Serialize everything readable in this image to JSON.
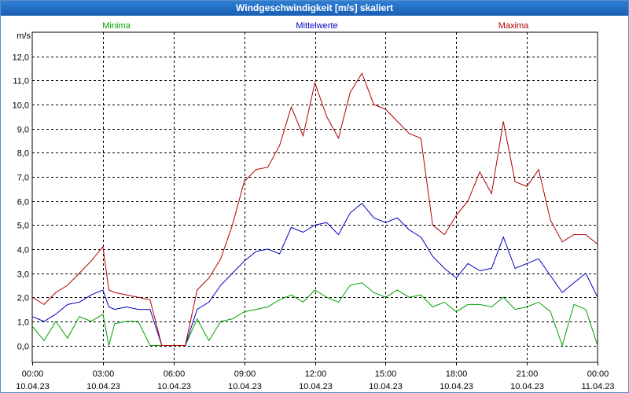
{
  "window": {
    "title": "Windgeschwindigkeit [m/s] skaliert"
  },
  "chart_data": {
    "type": "line",
    "title": "Windgeschwindigkeit [m/s] skaliert",
    "ylabel": "m/s",
    "xlabel": "",
    "ylim": [
      -0.7,
      13.0
    ],
    "xlim": [
      0,
      24
    ],
    "yticks": [
      "0,0",
      "1,0",
      "2,0",
      "3,0",
      "4,0",
      "5,0",
      "6,0",
      "7,0",
      "8,0",
      "9,0",
      "10,0",
      "11,0",
      "12,0"
    ],
    "ytick_values": [
      0,
      1,
      2,
      3,
      4,
      5,
      6,
      7,
      8,
      9,
      10,
      11,
      12
    ],
    "xticks": [
      {
        "time": "00:00",
        "date": "10.04.23",
        "hour": 0
      },
      {
        "time": "03:00",
        "date": "10.04.23",
        "hour": 3
      },
      {
        "time": "06:00",
        "date": "10.04.23",
        "hour": 6
      },
      {
        "time": "09:00",
        "date": "10.04.23",
        "hour": 9
      },
      {
        "time": "12:00",
        "date": "10.04.23",
        "hour": 12
      },
      {
        "time": "15:00",
        "date": "10.04.23",
        "hour": 15
      },
      {
        "time": "18:00",
        "date": "10.04.23",
        "hour": 18
      },
      {
        "time": "21:00",
        "date": "10.04.23",
        "hour": 21
      },
      {
        "time": "00:00",
        "date": "11.04.23",
        "hour": 24
      }
    ],
    "grid": true,
    "legend_position": "top",
    "series": [
      {
        "name": "Minima",
        "color": "#00a000",
        "x": [
          0,
          0.5,
          1,
          1.5,
          2,
          2.5,
          3,
          3.25,
          3.5,
          4,
          4.5,
          5,
          5.5,
          6,
          6.5,
          7,
          7.5,
          8,
          8.5,
          9,
          9.5,
          10,
          10.5,
          11,
          11.5,
          12,
          12.5,
          13,
          13.5,
          14,
          14.5,
          15,
          15.5,
          16,
          16.5,
          17,
          17.5,
          18,
          18.5,
          19,
          19.5,
          20,
          20.5,
          21,
          21.5,
          22,
          22.5,
          23,
          23.5,
          24
        ],
        "values": [
          0.8,
          0.2,
          1.0,
          0.3,
          1.2,
          1.0,
          1.3,
          0.0,
          0.9,
          1.0,
          1.0,
          0.0,
          0.0,
          0.0,
          0.0,
          1.1,
          0.2,
          1.0,
          1.1,
          1.4,
          1.5,
          1.6,
          1.9,
          2.1,
          1.8,
          2.3,
          2.0,
          1.8,
          2.5,
          2.6,
          2.2,
          2.0,
          2.3,
          2.0,
          2.1,
          1.6,
          1.8,
          1.4,
          1.7,
          1.7,
          1.6,
          2.0,
          1.5,
          1.6,
          1.8,
          1.4,
          0.0,
          1.7,
          1.5,
          0.0
        ]
      },
      {
        "name": "Mittelwerte",
        "color": "#0000c0",
        "x": [
          0,
          0.5,
          1,
          1.5,
          2,
          2.5,
          3,
          3.25,
          3.5,
          4,
          4.5,
          5,
          5.5,
          6,
          6.5,
          7,
          7.5,
          8,
          8.5,
          9,
          9.5,
          10,
          10.5,
          11,
          11.5,
          12,
          12.5,
          13,
          13.5,
          14,
          14.5,
          15,
          15.5,
          16,
          16.5,
          17,
          17.5,
          18,
          18.5,
          19,
          19.5,
          20,
          20.5,
          21,
          21.5,
          22,
          22.5,
          23,
          23.5,
          24
        ],
        "values": [
          1.2,
          1.0,
          1.3,
          1.7,
          1.8,
          2.1,
          2.3,
          1.6,
          1.5,
          1.6,
          1.5,
          1.5,
          0.0,
          0.0,
          0.0,
          1.5,
          1.8,
          2.5,
          3.0,
          3.5,
          3.9,
          4.0,
          3.8,
          4.9,
          4.7,
          5.0,
          5.1,
          4.6,
          5.5,
          5.9,
          5.3,
          5.1,
          5.3,
          4.8,
          4.5,
          3.7,
          3.2,
          2.8,
          3.4,
          3.1,
          3.2,
          4.5,
          3.2,
          3.4,
          3.6,
          2.9,
          2.2,
          2.6,
          3.0,
          2.0
        ]
      },
      {
        "name": "Maxima",
        "color": "#b00000",
        "x": [
          0,
          0.5,
          1,
          1.5,
          2,
          2.5,
          3,
          3.25,
          3.5,
          4,
          4.5,
          5,
          5.5,
          6,
          6.5,
          7,
          7.5,
          8,
          8.5,
          9,
          9.5,
          10,
          10.5,
          11,
          11.5,
          12,
          12.5,
          13,
          13.5,
          14,
          14.5,
          15,
          15.5,
          16,
          16.5,
          17,
          17.5,
          18,
          18.5,
          19,
          19.5,
          20,
          20.5,
          21,
          21.5,
          22,
          22.5,
          23,
          23.5,
          24
        ],
        "values": [
          2.0,
          1.7,
          2.2,
          2.5,
          3.0,
          3.5,
          4.1,
          2.3,
          2.2,
          2.1,
          2.0,
          1.9,
          0.0,
          0.0,
          0.0,
          2.3,
          2.8,
          3.6,
          5.0,
          6.8,
          7.3,
          7.4,
          8.3,
          9.9,
          8.7,
          10.9,
          9.5,
          8.6,
          10.5,
          11.3,
          10.0,
          9.8,
          9.3,
          8.8,
          8.6,
          5.0,
          4.6,
          5.4,
          6.0,
          7.2,
          6.3,
          9.3,
          6.8,
          6.6,
          7.3,
          5.2,
          4.3,
          4.6,
          4.6,
          4.2
        ]
      }
    ]
  }
}
